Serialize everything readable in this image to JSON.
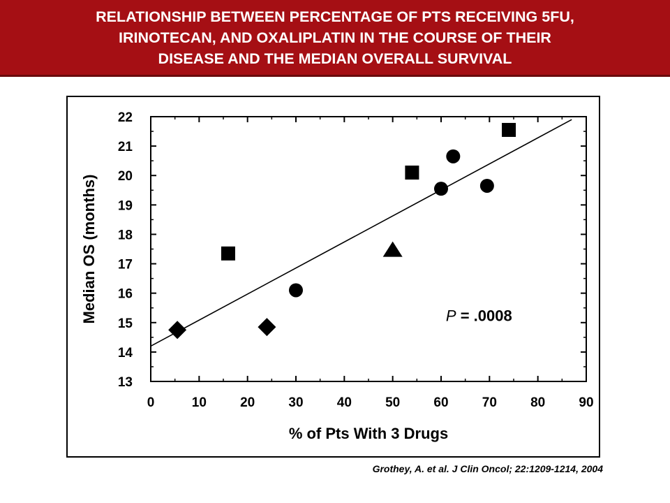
{
  "title": {
    "lines": [
      "RELATIONSHIP BETWEEN PERCENTAGE OF PTS RECEIVING 5FU,",
      "IRINOTECAN, AND OXALIPLATIN IN THE COURSE OF THEIR",
      "DISEASE AND THE MEDIAN OVERALL SURVIVAL"
    ]
  },
  "colors": {
    "banner": "#a50f14",
    "banner_text": "#ffffff",
    "ink": "#000000"
  },
  "citation": "Grothey, A. et al. J Clin Oncol; 22:1209-1214, 2004",
  "chart_data": {
    "type": "scatter",
    "xlabel": "% of Pts With 3 Drugs",
    "ylabel": "Median OS (months)",
    "xlim": [
      0,
      90
    ],
    "ylim": [
      13,
      22
    ],
    "xticks": [
      0,
      10,
      20,
      30,
      40,
      50,
      60,
      70,
      80,
      90
    ],
    "yticks": [
      13,
      14,
      15,
      16,
      17,
      18,
      19,
      20,
      21,
      22
    ],
    "grid": false,
    "points": [
      {
        "x": 5.5,
        "y": 14.75,
        "marker": "diamond"
      },
      {
        "x": 24,
        "y": 14.85,
        "marker": "diamond"
      },
      {
        "x": 16,
        "y": 17.35,
        "marker": "square"
      },
      {
        "x": 54,
        "y": 20.1,
        "marker": "square"
      },
      {
        "x": 74,
        "y": 21.55,
        "marker": "square"
      },
      {
        "x": 30,
        "y": 16.1,
        "marker": "circle"
      },
      {
        "x": 60,
        "y": 19.55,
        "marker": "circle"
      },
      {
        "x": 62.5,
        "y": 20.65,
        "marker": "circle"
      },
      {
        "x": 69.5,
        "y": 19.65,
        "marker": "circle"
      },
      {
        "x": 50,
        "y": 17.45,
        "marker": "triangle"
      }
    ],
    "trend_line": {
      "x": [
        0,
        87
      ],
      "y": [
        14.2,
        21.9
      ]
    },
    "annotation": {
      "text_italic": "P",
      "text": " = .0008",
      "x": 61,
      "y": 15.05
    }
  }
}
